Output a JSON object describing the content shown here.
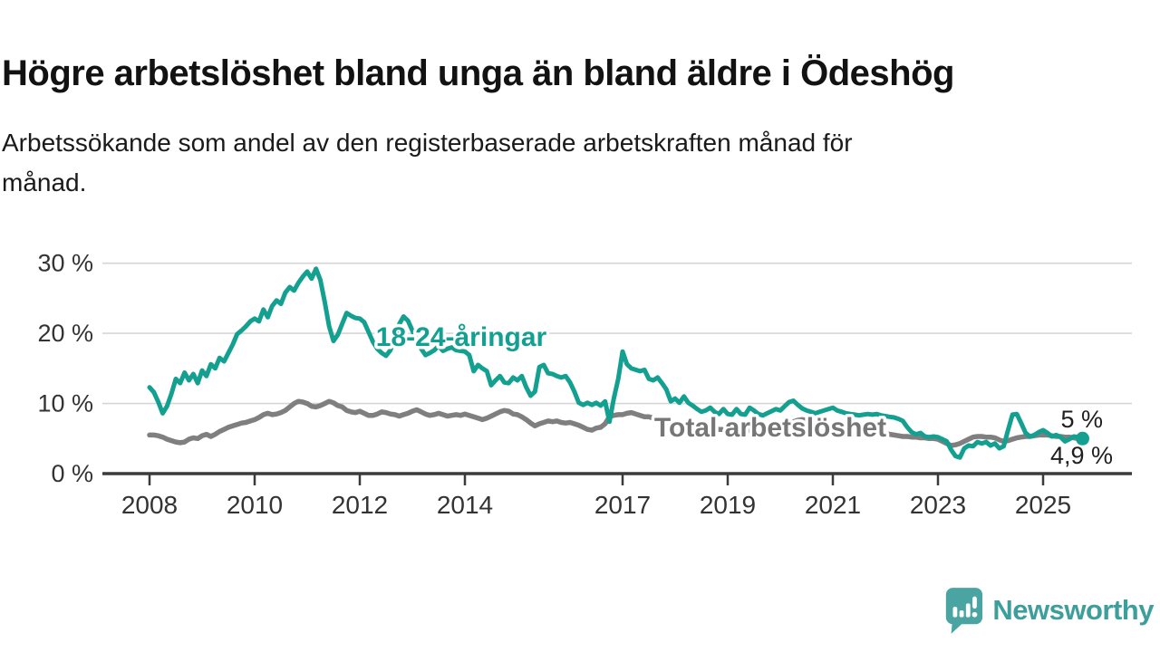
{
  "header": {
    "title": "Högre arbetslöshet bland unga än bland äldre i Ödeshög",
    "subtitle_lines": [
      "Arbetssökande som andel av den registerbaserade arbetskraften månad för",
      "månad."
    ]
  },
  "chart_data": {
    "type": "line",
    "title": "Högre arbetslöshet bland unga än bland äldre i Ödeshög",
    "subtitle": "Arbetssökande som andel av den registerbaserade arbetskraften månad för månad.",
    "unit": "%",
    "frequency": "monthly",
    "x_start": "2008-01",
    "x_end": "2025-10",
    "ylim": [
      0,
      31
    ],
    "grid": "horizontal",
    "legend_position": "inline-labels",
    "y_axis": {
      "ticks": [
        {
          "value": 0,
          "label": "0 %"
        },
        {
          "value": 10,
          "label": "10 %"
        },
        {
          "value": 20,
          "label": "20 %"
        },
        {
          "value": 30,
          "label": "30 %"
        }
      ]
    },
    "x_axis": {
      "ticks": [
        {
          "year": 2008,
          "label": "2008"
        },
        {
          "year": 2010,
          "label": "2010"
        },
        {
          "year": 2012,
          "label": "2012"
        },
        {
          "year": 2014,
          "label": "2014"
        },
        {
          "year": 2017,
          "label": "2017"
        },
        {
          "year": 2019,
          "label": "2019"
        },
        {
          "year": 2021,
          "label": "2021"
        },
        {
          "year": 2023,
          "label": "2023"
        },
        {
          "year": 2025,
          "label": "2025"
        }
      ]
    },
    "series": [
      {
        "id": "youth",
        "name": "18-24-åringar",
        "color": "#14a090",
        "end_value": 5.0,
        "end_label": "5 %",
        "values": [
          12.3,
          11.6,
          10.2,
          8.6,
          9.6,
          11.4,
          13.5,
          12.9,
          14.4,
          13.3,
          14.2,
          12.9,
          14.7,
          13.9,
          15.6,
          15.0,
          16.5,
          16.0,
          17.2,
          18.4,
          19.9,
          20.4,
          21.0,
          21.7,
          22.1,
          21.7,
          23.4,
          22.3,
          23.9,
          24.7,
          24.2,
          25.8,
          26.6,
          26.1,
          27.2,
          28.1,
          28.8,
          27.8,
          29.2,
          27.6,
          24.5,
          21.0,
          18.9,
          19.8,
          21.4,
          22.9,
          22.5,
          22.2,
          22.1,
          21.6,
          20.2,
          18.8,
          17.8,
          17.2,
          16.8,
          17.6,
          19.5,
          21.3,
          22.4,
          21.8,
          20.4,
          19.0,
          17.8,
          16.9,
          17.2,
          17.6,
          18.2,
          17.5,
          17.8,
          18.0,
          17.6,
          17.5,
          17.4,
          16.9,
          14.6,
          15.5,
          15.0,
          14.6,
          12.6,
          13.3,
          13.9,
          13.0,
          12.9,
          13.7,
          13.3,
          13.9,
          12.3,
          11.1,
          11.7,
          15.2,
          15.5,
          14.3,
          14.2,
          13.9,
          13.7,
          13.9,
          13.0,
          11.7,
          10.1,
          9.8,
          10.1,
          9.8,
          10.1,
          9.7,
          10.3,
          7.4,
          10.7,
          13.5,
          17.4,
          15.6,
          15.0,
          14.8,
          14.6,
          14.8,
          13.5,
          13.3,
          13.7,
          12.9,
          12.0,
          10.3,
          10.7,
          10.1,
          11.0,
          10.1,
          9.7,
          9.2,
          8.8,
          9.0,
          9.4,
          8.8,
          8.5,
          9.2,
          8.5,
          8.4,
          9.2,
          8.5,
          8.4,
          9.4,
          9.0,
          8.5,
          8.3,
          8.6,
          8.9,
          9.2,
          9.0,
          9.6,
          10.2,
          10.4,
          9.8,
          9.3,
          9.0,
          8.8,
          8.6,
          8.8,
          9.0,
          9.2,
          9.4,
          9.0,
          8.8,
          8.6,
          8.5,
          8.4,
          8.3,
          8.4,
          8.5,
          8.4,
          8.5,
          8.3,
          8.2,
          8.1,
          8.0,
          7.8,
          7.5,
          6.6,
          5.9,
          5.6,
          5.8,
          5.3,
          5.2,
          5.3,
          5.2,
          4.9,
          4.6,
          3.4,
          2.5,
          2.3,
          3.6,
          4.0,
          3.9,
          4.5,
          4.3,
          4.5,
          4.0,
          4.3,
          3.6,
          3.9,
          6.2,
          8.4,
          8.5,
          7.2,
          5.8,
          5.3,
          5.5,
          5.9,
          6.2,
          5.8,
          5.3,
          5.5,
          5.2,
          4.6,
          4.9,
          5.3,
          5.2,
          5.0
        ]
      },
      {
        "id": "total",
        "name": "Total arbetslöshet",
        "color": "#7f7f7f",
        "end_value": 4.9,
        "end_label": "4,9 %",
        "values": [
          5.5,
          5.5,
          5.4,
          5.2,
          4.9,
          4.7,
          4.5,
          4.4,
          4.5,
          4.9,
          5.1,
          5.0,
          5.4,
          5.6,
          5.3,
          5.6,
          6.0,
          6.3,
          6.6,
          6.8,
          7.0,
          7.2,
          7.3,
          7.5,
          7.7,
          8.0,
          8.4,
          8.6,
          8.4,
          8.5,
          8.7,
          9.0,
          9.5,
          10.0,
          10.3,
          10.2,
          10.0,
          9.6,
          9.5,
          9.7,
          10.0,
          10.3,
          10.1,
          9.7,
          9.5,
          9.0,
          8.8,
          8.7,
          8.9,
          8.6,
          8.3,
          8.3,
          8.5,
          8.8,
          8.7,
          8.5,
          8.4,
          8.2,
          8.4,
          8.6,
          8.9,
          9.1,
          8.8,
          8.5,
          8.3,
          8.4,
          8.6,
          8.4,
          8.2,
          8.3,
          8.4,
          8.3,
          8.5,
          8.3,
          8.1,
          7.9,
          7.7,
          7.9,
          8.2,
          8.5,
          8.8,
          9.0,
          8.9,
          8.5,
          8.4,
          8.1,
          7.7,
          7.2,
          6.8,
          7.1,
          7.3,
          7.5,
          7.4,
          7.5,
          7.3,
          7.2,
          7.3,
          7.1,
          6.9,
          6.6,
          6.3,
          6.2,
          6.5,
          6.6,
          7.1,
          8.1,
          8.3,
          8.4,
          8.4,
          8.6,
          8.7,
          8.5,
          8.3,
          8.1,
          8.1,
          7.9,
          7.8,
          7.6,
          7.4,
          7.2,
          7.1,
          7.0,
          6.9,
          6.8,
          6.7,
          6.6,
          6.5,
          6.5,
          6.4,
          6.4,
          6.3,
          6.3,
          6.3,
          6.2,
          6.2,
          6.1,
          6.1,
          6.2,
          6.2,
          6.1,
          6.1,
          6.2,
          6.3,
          6.4,
          6.5,
          6.6,
          7.0,
          7.4,
          7.6,
          7.7,
          7.6,
          7.4,
          7.2,
          7.1,
          7.0,
          6.9,
          6.9,
          6.8,
          6.7,
          6.6,
          6.5,
          6.4,
          6.3,
          6.2,
          6.1,
          6.0,
          5.9,
          5.8,
          5.7,
          5.6,
          5.5,
          5.4,
          5.3,
          5.3,
          5.2,
          5.2,
          5.1,
          5.1,
          5.0,
          5.0,
          4.9,
          4.6,
          4.3,
          4.0,
          4.1,
          4.3,
          4.6,
          4.9,
          5.2,
          5.3,
          5.3,
          5.2,
          5.2,
          5.1,
          4.8,
          4.6,
          4.7,
          4.9,
          5.1,
          5.2,
          5.3,
          5.3,
          5.4,
          5.5,
          5.5,
          5.5,
          5.4,
          5.3,
          5.3,
          5.2,
          5.2,
          5.1,
          5.0,
          4.9
        ]
      }
    ]
  },
  "logo": {
    "text": "Newsworthy",
    "color": "#3d9e9c",
    "icon": "speech-bubble-bar-chart-exclamation",
    "icon_color": "#4aa5a2"
  },
  "colors": {
    "youth_line": "#14a090",
    "total_line": "#7f7f7f",
    "axis": "#3b3b3b",
    "gridline": "#d6d6d6"
  }
}
